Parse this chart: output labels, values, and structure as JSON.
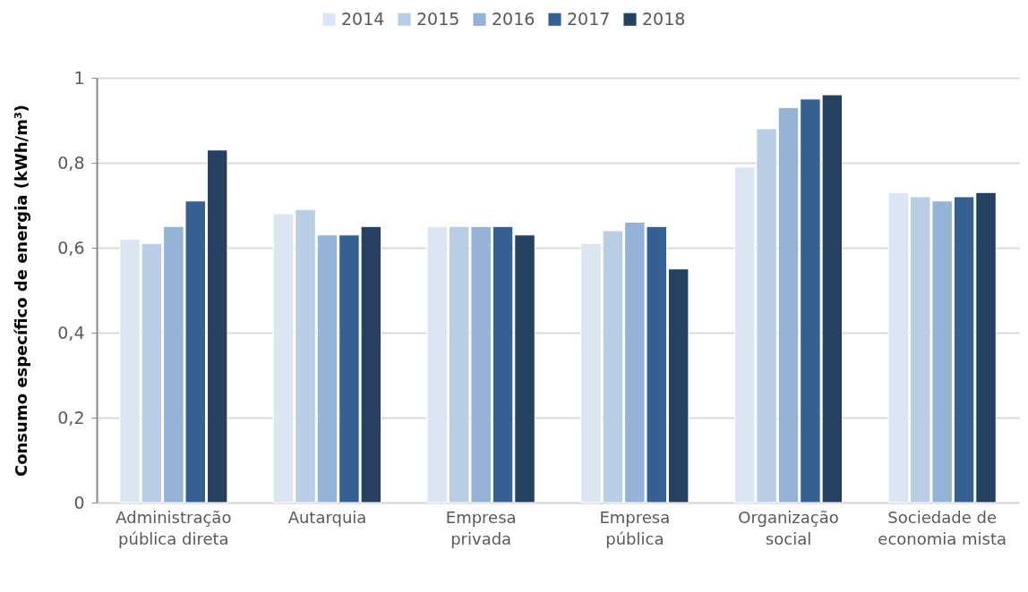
{
  "chart_data": {
    "type": "bar",
    "ylabel": "Consumo específico de energia (kWh/m³)",
    "categories": [
      "Administração pública direta",
      "Autarquia",
      "Empresa privada",
      "Empresa pública",
      "Organização social",
      "Sociedade de economia mista"
    ],
    "series": [
      {
        "name": "2014",
        "color": "#dce6f2",
        "values": [
          0.62,
          0.68,
          0.65,
          0.61,
          0.79,
          0.73
        ]
      },
      {
        "name": "2015",
        "color": "#b9cde5",
        "values": [
          0.61,
          0.69,
          0.65,
          0.64,
          0.88,
          0.72
        ]
      },
      {
        "name": "2016",
        "color": "#95b3d7",
        "values": [
          0.65,
          0.63,
          0.65,
          0.66,
          0.93,
          0.71
        ]
      },
      {
        "name": "2017",
        "color": "#376092",
        "values": [
          0.71,
          0.63,
          0.65,
          0.65,
          0.95,
          0.72
        ]
      },
      {
        "name": "2018",
        "color": "#254061",
        "values": [
          0.83,
          0.65,
          0.63,
          0.55,
          0.96,
          0.73
        ]
      }
    ],
    "ylim": [
      0,
      1
    ],
    "yticks": [
      0,
      {
        "value": 0.2,
        "label": "0,2"
      },
      {
        "value": 0.4,
        "label": "0,4"
      },
      {
        "value": 0.6,
        "label": "0,6"
      },
      {
        "value": 0.8,
        "label": "0,8"
      },
      1
    ],
    "grid": "y",
    "legend": "top"
  }
}
